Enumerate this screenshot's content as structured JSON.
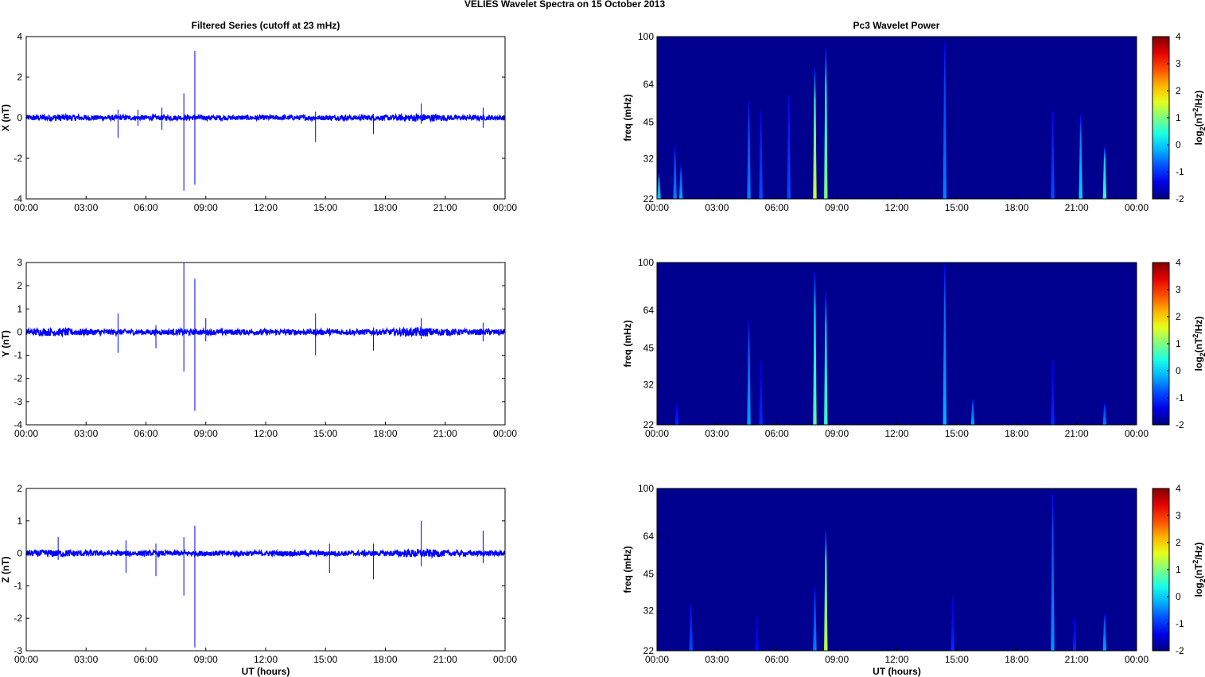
{
  "figure_title": "VELIES Wavelet Spectra on 15 October   2013",
  "left_title": "Filtered Series (cutoff at 23 mHz)",
  "right_title": "Pc3 Wavelet Power",
  "x_tick_labels": [
    "00:00",
    "03:00",
    "06:00",
    "09:00",
    "12:00",
    "15:00",
    "18:00",
    "21:00",
    "00:00"
  ],
  "x_label": "UT (hours)",
  "freq_label": "freq (mHz)",
  "freq_ticks": [
    "100",
    "64",
    "45",
    "32",
    "22"
  ],
  "colorbar_ticks": [
    "4",
    "3",
    "2",
    "1",
    "0",
    "-1",
    "-2"
  ],
  "colorbar_label_parts": {
    "log": "log",
    "sub": "2",
    "base": "(nT",
    "sup": "2",
    "tail": "/Hz)"
  },
  "colors": {
    "series": "#0000ff",
    "axes": "#000000",
    "background_power": "#00008f"
  },
  "chart_data": [
    {
      "type": "line",
      "name": "X",
      "ylabel": "X (nT)",
      "xlim_hours": [
        0,
        24
      ],
      "ylim": [
        -4,
        4
      ],
      "yticks": [
        4,
        2,
        0,
        -2,
        -4
      ],
      "noise_amplitude_nT": 0.12,
      "spikes": [
        {
          "t": 4.6,
          "min": -1.0,
          "max": 0.4
        },
        {
          "t": 5.6,
          "min": -0.4,
          "max": 0.4
        },
        {
          "t": 6.8,
          "min": -0.6,
          "max": 0.5
        },
        {
          "t": 7.9,
          "min": -3.6,
          "max": 1.2
        },
        {
          "t": 8.45,
          "min": -3.3,
          "max": 3.3
        },
        {
          "t": 14.5,
          "min": -1.2,
          "max": 0.3
        },
        {
          "t": 17.4,
          "min": -0.8,
          "max": 0.2
        },
        {
          "t": 19.8,
          "min": -0.3,
          "max": 0.7
        },
        {
          "t": 22.9,
          "min": -0.5,
          "max": 0.5
        }
      ]
    },
    {
      "type": "line",
      "name": "Y",
      "ylabel": "Y (nT)",
      "xlim_hours": [
        0,
        24
      ],
      "ylim": [
        -4,
        3
      ],
      "yticks": [
        3,
        2,
        1,
        0,
        -1,
        -2,
        -3,
        -4
      ],
      "noise_amplitude_nT": 0.12,
      "spikes": [
        {
          "t": 4.6,
          "min": -0.9,
          "max": 0.8
        },
        {
          "t": 6.5,
          "min": -0.7,
          "max": 0.3
        },
        {
          "t": 7.9,
          "min": -1.7,
          "max": 3.0
        },
        {
          "t": 8.45,
          "min": -3.4,
          "max": 2.3
        },
        {
          "t": 9.0,
          "min": -0.4,
          "max": 0.6
        },
        {
          "t": 14.5,
          "min": -1.0,
          "max": 0.8
        },
        {
          "t": 17.4,
          "min": -0.8,
          "max": 0.2
        },
        {
          "t": 19.8,
          "min": -0.3,
          "max": 0.6
        },
        {
          "t": 22.9,
          "min": -0.4,
          "max": 0.4
        }
      ]
    },
    {
      "type": "line",
      "name": "Z",
      "ylabel": "Z (nT)",
      "xlim_hours": [
        0,
        24
      ],
      "ylim": [
        -3,
        2
      ],
      "yticks": [
        2,
        1,
        0,
        -1,
        -2,
        -3
      ],
      "noise_amplitude_nT": 0.08,
      "spikes": [
        {
          "t": 1.6,
          "min": -0.2,
          "max": 0.5
        },
        {
          "t": 5.0,
          "min": -0.6,
          "max": 0.4
        },
        {
          "t": 6.5,
          "min": -0.7,
          "max": 0.3
        },
        {
          "t": 7.9,
          "min": -1.3,
          "max": 0.5
        },
        {
          "t": 8.45,
          "min": -2.9,
          "max": 0.85
        },
        {
          "t": 15.2,
          "min": -0.6,
          "max": 0.3
        },
        {
          "t": 17.4,
          "min": -0.8,
          "max": 0.3
        },
        {
          "t": 19.8,
          "min": -0.4,
          "max": 1.0
        },
        {
          "t": 22.9,
          "min": -0.3,
          "max": 0.7
        }
      ]
    },
    {
      "type": "heatmap",
      "name": "X power",
      "ylabel": "freq (mHz)",
      "xlim_hours": [
        0,
        24
      ],
      "ylim_mHz": [
        22,
        100
      ],
      "y_scale": "log",
      "clim": [
        -2,
        4
      ],
      "colorbar_ticks": [
        4,
        3,
        2,
        1,
        0,
        -1,
        -2
      ],
      "streaks": [
        {
          "t": 0.1,
          "fmax": 28,
          "level": 0.0
        },
        {
          "t": 0.9,
          "fmax": 36,
          "level": -0.5
        },
        {
          "t": 1.2,
          "fmax": 30,
          "level": -0.3
        },
        {
          "t": 4.6,
          "fmax": 55,
          "level": -0.5
        },
        {
          "t": 5.2,
          "fmax": 50,
          "level": -0.8
        },
        {
          "t": 6.6,
          "fmax": 58,
          "level": -0.8
        },
        {
          "t": 7.9,
          "fmax": 75,
          "level": 1.5
        },
        {
          "t": 8.45,
          "fmax": 90,
          "level": 1.0
        },
        {
          "t": 14.4,
          "fmax": 95,
          "level": -0.5
        },
        {
          "t": 19.8,
          "fmax": 50,
          "level": -0.8
        },
        {
          "t": 21.2,
          "fmax": 48,
          "level": 0.0
        },
        {
          "t": 22.4,
          "fmax": 36,
          "level": 0.6
        }
      ]
    },
    {
      "type": "heatmap",
      "name": "Y power",
      "ylabel": "freq (mHz)",
      "xlim_hours": [
        0,
        24
      ],
      "ylim_mHz": [
        22,
        100
      ],
      "y_scale": "log",
      "clim": [
        -2,
        4
      ],
      "colorbar_ticks": [
        4,
        3,
        2,
        1,
        0,
        -1,
        -2
      ],
      "streaks": [
        {
          "t": 1.0,
          "fmax": 27,
          "level": -1.0
        },
        {
          "t": 4.6,
          "fmax": 58,
          "level": -0.3
        },
        {
          "t": 5.2,
          "fmax": 40,
          "level": -1.0
        },
        {
          "t": 7.9,
          "fmax": 92,
          "level": 0.8
        },
        {
          "t": 8.45,
          "fmax": 76,
          "level": 0.6
        },
        {
          "t": 14.4,
          "fmax": 98,
          "level": -0.2
        },
        {
          "t": 15.8,
          "fmax": 28,
          "level": -0.3
        },
        {
          "t": 19.8,
          "fmax": 40,
          "level": -1.0
        },
        {
          "t": 22.4,
          "fmax": 27,
          "level": -0.5
        }
      ]
    },
    {
      "type": "heatmap",
      "name": "Z power",
      "ylabel": "freq (mHz)",
      "xlim_hours": [
        0,
        24
      ],
      "ylim_mHz": [
        22,
        100
      ],
      "y_scale": "log",
      "clim": [
        -2,
        4
      ],
      "colorbar_ticks": [
        4,
        3,
        2,
        1,
        0,
        -1,
        -2
      ],
      "streaks": [
        {
          "t": 1.7,
          "fmax": 34,
          "level": -0.8
        },
        {
          "t": 5.0,
          "fmax": 30,
          "level": -1.2
        },
        {
          "t": 7.9,
          "fmax": 40,
          "level": -0.5
        },
        {
          "t": 8.45,
          "fmax": 68,
          "level": 1.4
        },
        {
          "t": 14.8,
          "fmax": 36,
          "level": -1.0
        },
        {
          "t": 19.8,
          "fmax": 95,
          "level": -0.4
        },
        {
          "t": 20.9,
          "fmax": 30,
          "level": -1.0
        },
        {
          "t": 22.4,
          "fmax": 31,
          "level": -0.3
        }
      ]
    }
  ]
}
